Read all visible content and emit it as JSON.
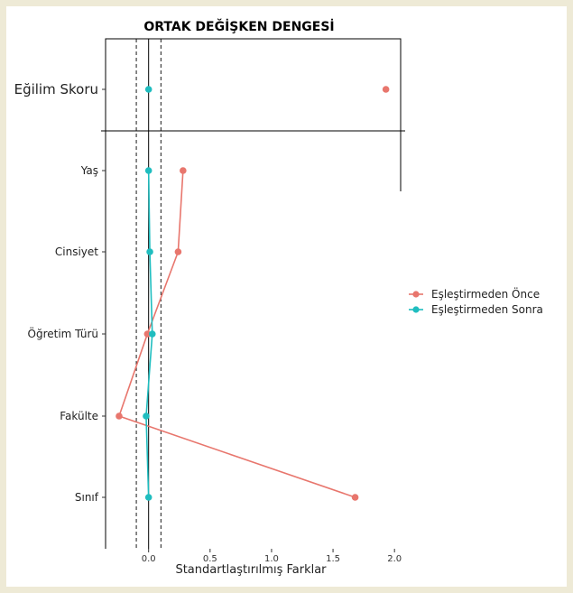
{
  "chart_data": {
    "type": "scatter",
    "title": "ORTAK DEĞİŞKEN DENGESİ",
    "xlabel": "Standartlaştırılmış Farklar",
    "ylabel": "",
    "xlim": [
      -0.35,
      2.05
    ],
    "x_ticks": [
      "0.0",
      "0.5",
      "1.0",
      "1.5",
      "2.0"
    ],
    "x_tick_values": [
      0.0,
      0.5,
      1.0,
      1.5,
      2.0
    ],
    "threshold_lines": [
      -0.1,
      0.1
    ],
    "zero_line": 0,
    "grid": false,
    "legend_position": "right",
    "top_panel": {
      "categories": [
        "Eğilim Skoru"
      ],
      "series": [
        {
          "name": "Eşleştirmeden Önce",
          "color": "#e8766d",
          "values": [
            1.93
          ]
        },
        {
          "name": "Eşleştirmeden Sonra",
          "color": "#1fbdbf",
          "values": [
            0.0
          ]
        }
      ]
    },
    "bottom_panel": {
      "categories": [
        "Yaş",
        "Cinsiyet",
        "Öğretim Türü",
        "Fakülte",
        "Sınıf"
      ],
      "series": [
        {
          "name": "Eşleştirmeden Önce",
          "color": "#e8766d",
          "values": [
            0.28,
            0.24,
            -0.01,
            -0.24,
            1.68
          ]
        },
        {
          "name": "Eşleştirmeden Sonra",
          "color": "#1fbdbf",
          "values": [
            0.0,
            0.01,
            0.03,
            -0.02,
            0.0
          ]
        }
      ]
    }
  }
}
